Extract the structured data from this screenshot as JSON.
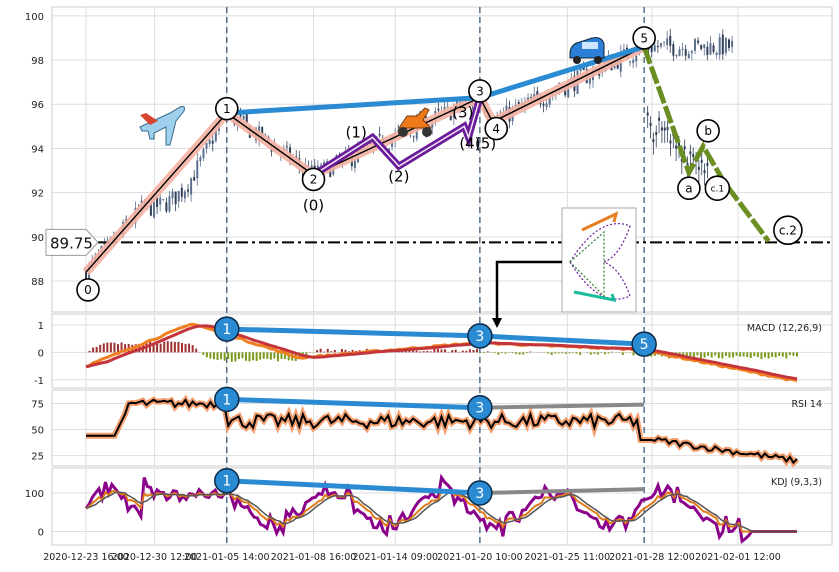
{
  "chart_data": [
    {
      "panel": "price",
      "type": "candlestick",
      "ylim": [
        86.6,
        100.4
      ],
      "yticks": [
        88,
        90,
        92,
        94,
        96,
        98,
        100
      ],
      "grid": true,
      "hline": {
        "value": 89.75,
        "label": "89.75",
        "style": "dash-dot"
      },
      "vlines_at_points": [
        "1",
        "3",
        "5"
      ],
      "wave_points": [
        {
          "label": "0",
          "x": 0.0,
          "y": 88.4
        },
        {
          "label": "1",
          "x": 0.198,
          "y": 95.6
        },
        {
          "label": "2",
          "x": 0.32,
          "y": 92.8
        },
        {
          "label": "3",
          "x": 0.554,
          "y": 96.3
        },
        {
          "label": "4",
          "x": 0.572,
          "y": 95.2
        },
        {
          "label": "5",
          "x": 0.785,
          "y": 98.6
        }
      ],
      "sub_wave": [
        {
          "label": "(0)",
          "x": 0.32,
          "y": 92.8
        },
        {
          "label": "(1)",
          "x": 0.403,
          "y": 94.5
        },
        {
          "label": "(2)",
          "x": 0.44,
          "y": 93.2
        },
        {
          "label": "(3)",
          "x": 0.532,
          "y": 95.0
        },
        {
          "label": "(4)",
          "x": 0.538,
          "y": 94.5
        },
        {
          "label": "(5)",
          "x": 0.554,
          "y": 96.3
        }
      ],
      "correction": [
        {
          "label": "a",
          "x": 0.848,
          "y": 92.9
        },
        {
          "label": "b",
          "x": 0.868,
          "y": 94.1
        },
        {
          "label": "c.1",
          "x": 0.897,
          "y": 92.5
        },
        {
          "label": "c.2",
          "x": 0.96,
          "y": 89.8
        }
      ],
      "trendline_1_3_5": [
        [
          0.198,
          95.6
        ],
        [
          0.554,
          96.3
        ],
        [
          0.785,
          98.6
        ]
      ],
      "annotations": [
        "0",
        "1",
        "2",
        "(0)",
        "(1)",
        "(2)",
        "3",
        "(3)",
        "(4)",
        "(5)",
        "4",
        "5",
        "a",
        "b",
        "c.1",
        "c.2"
      ],
      "colors": {
        "up": "#5b6f8f",
        "down": "#2f3e59",
        "wave": "#f4b3a3",
        "subwave": "#6a1b9a",
        "trend": "#2a8bd3",
        "correction": "#6b8e23"
      }
    },
    {
      "panel": "macd",
      "type": "line",
      "title": "MACD (12,26,9)",
      "ylim": [
        -1.3,
        1.4
      ],
      "yticks": [
        -1,
        0,
        1
      ],
      "markers": [
        {
          "label": "1",
          "x": 0.198,
          "y": 0.85
        },
        {
          "label": "3",
          "x": 0.554,
          "y": 0.6
        },
        {
          "label": "5",
          "x": 0.785,
          "y": 0.3
        }
      ],
      "colors": {
        "macd": "#f07f1f",
        "signal": "#c4343b",
        "hist_pos": "#a03030",
        "hist_neg": "#7a9a1a"
      }
    },
    {
      "panel": "rsi",
      "type": "line",
      "title": "RSI 14",
      "ylim": [
        15,
        88
      ],
      "yticks": [
        25,
        50,
        75
      ],
      "markers": [
        {
          "label": "1",
          "x": 0.198,
          "y": 79
        },
        {
          "label": "3",
          "x": 0.554,
          "y": 71
        }
      ],
      "colors": {
        "line": "#000000",
        "glow": "#f4a070"
      }
    },
    {
      "panel": "kdj",
      "type": "line",
      "title": "KDJ (9,3,3)",
      "ylim": [
        -35,
        165
      ],
      "yticks": [
        0,
        100
      ],
      "markers": [
        {
          "label": "1",
          "x": 0.198,
          "y": 132
        },
        {
          "label": "3",
          "x": 0.554,
          "y": 100
        }
      ],
      "colors": {
        "k": "#e07b1a",
        "d": "#555555",
        "j": "#8b008b"
      }
    }
  ],
  "x_axis": {
    "tick_labels": [
      "2020-12-23 16:00",
      "2020-12-30 12:00",
      "2021-01-05 14:00",
      "2021-01-08 16:00",
      "2021-01-14 09:00",
      "2021-01-20 10:00",
      "2021-01-25 11:00",
      "2021-01-28 12:00",
      "2021-02-01 12:00"
    ],
    "tick_positions": [
      0.0,
      0.0965,
      0.198,
      0.32,
      0.435,
      0.554,
      0.677,
      0.796,
      0.917
    ]
  },
  "icons": [
    "airplane-icon",
    "scooter-icon",
    "car-icon",
    "inset-diagram"
  ]
}
